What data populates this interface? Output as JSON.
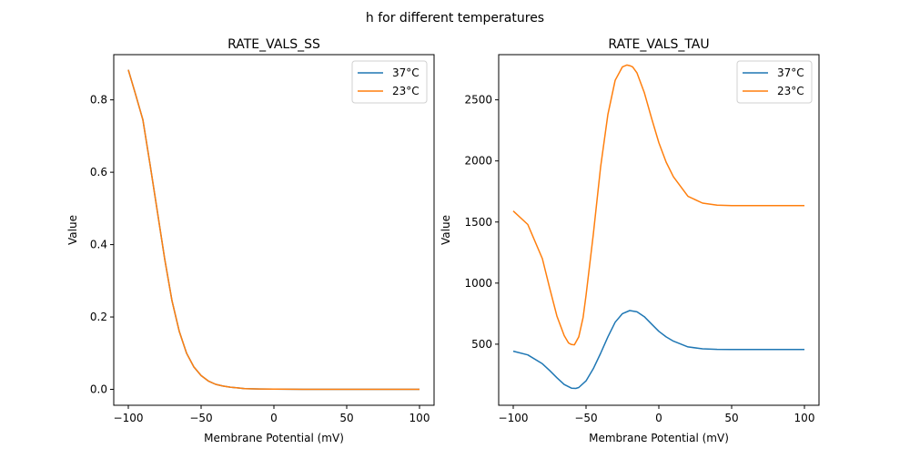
{
  "chart_data": {
    "suptitle": "h for different temperatures",
    "panels": [
      {
        "type": "line",
        "title": "RATE_VALS_SS",
        "xlabel": "Membrane Potential (mV)",
        "ylabel": "Value",
        "xlim": [
          -110,
          110
        ],
        "ylim": [
          -0.044,
          0.925
        ],
        "xticks": [
          -100,
          -50,
          0,
          50,
          100
        ],
        "xtick_labels": [
          "−100",
          "−50",
          "0",
          "50",
          "100"
        ],
        "yticks": [
          0.0,
          0.2,
          0.4,
          0.6,
          0.8
        ],
        "ytick_labels": [
          "0.0",
          "0.2",
          "0.4",
          "0.6",
          "0.8"
        ],
        "legend": "top-right",
        "grid": false,
        "series": [
          {
            "name": "37°C",
            "color": "#1f77b4",
            "x": [
              -100,
              -95,
              -90,
              -85,
              -80,
              -75,
              -70,
              -65,
              -60,
              -55,
              -50,
              -45,
              -40,
              -35,
              -30,
              -25,
              -20,
              -10,
              0,
              10,
              20,
              30,
              40,
              50,
              60,
              70,
              80,
              90,
              100
            ],
            "y": [
              0.883,
              0.815,
              0.745,
              0.62,
              0.49,
              0.36,
              0.245,
              0.16,
              0.1,
              0.062,
              0.038,
              0.023,
              0.014,
              0.009,
              0.006,
              0.004,
              0.002,
              0.001,
              0.0005,
              0.0002,
              0.0001,
              0,
              0,
              0,
              0,
              0,
              0,
              0,
              0
            ]
          },
          {
            "name": "23°C",
            "color": "#ff7f0e",
            "x": [
              -100,
              -95,
              -90,
              -85,
              -80,
              -75,
              -70,
              -65,
              -60,
              -55,
              -50,
              -45,
              -40,
              -35,
              -30,
              -25,
              -20,
              -10,
              0,
              10,
              20,
              30,
              40,
              50,
              60,
              70,
              80,
              90,
              100
            ],
            "y": [
              0.883,
              0.815,
              0.745,
              0.62,
              0.49,
              0.36,
              0.245,
              0.16,
              0.1,
              0.062,
              0.038,
              0.023,
              0.014,
              0.009,
              0.006,
              0.004,
              0.002,
              0.001,
              0.0005,
              0.0002,
              0.0001,
              0,
              0,
              0,
              0,
              0,
              0,
              0,
              0
            ]
          }
        ]
      },
      {
        "type": "line",
        "title": "RATE_VALS_TAU",
        "xlabel": "Membrane Potential (mV)",
        "ylabel": "Value",
        "xlim": [
          -110,
          110
        ],
        "ylim": [
          0,
          2870
        ],
        "xticks": [
          -100,
          -50,
          0,
          50,
          100
        ],
        "xtick_labels": [
          "−100",
          "−50",
          "0",
          "50",
          "100"
        ],
        "yticks": [
          500,
          1000,
          1500,
          2000,
          2500
        ],
        "ytick_labels": [
          "500",
          "1000",
          "1500",
          "2000",
          "2500"
        ],
        "legend": "top-right",
        "grid": false,
        "series": [
          {
            "name": "37°C",
            "color": "#1f77b4",
            "x": [
              -100,
              -90,
              -80,
              -75,
              -70,
              -65,
              -60,
              -57,
              -55,
              -50,
              -45,
              -40,
              -35,
              -30,
              -25,
              -20,
              -15,
              -10,
              -5,
              0,
              5,
              10,
              20,
              30,
              40,
              50,
              60,
              70,
              80,
              90,
              100
            ],
            "y": [
              443,
              412,
              340,
              285,
              225,
              170,
              140,
              138,
              145,
              200,
              300,
              425,
              560,
              680,
              750,
              775,
              765,
              725,
              665,
              605,
              560,
              525,
              478,
              462,
              458,
              457,
              457,
              457,
              457,
              457,
              457
            ]
          },
          {
            "name": "23°C",
            "color": "#ff7f0e",
            "x": [
              -100,
              -90,
              -80,
              -75,
              -70,
              -65,
              -62,
              -60,
              -58,
              -55,
              -52,
              -50,
              -45,
              -40,
              -35,
              -30,
              -25,
              -22,
              -20,
              -18,
              -15,
              -10,
              -5,
              0,
              5,
              10,
              20,
              30,
              40,
              50,
              60,
              70,
              80,
              90,
              100
            ],
            "y": [
              1590,
              1480,
              1200,
              960,
              730,
              570,
              510,
              497,
              495,
              560,
              720,
              900,
              1400,
              1950,
              2380,
              2660,
              2770,
              2785,
              2780,
              2770,
              2720,
              2560,
              2350,
              2150,
              1990,
              1870,
              1710,
              1655,
              1638,
              1635,
              1635,
              1635,
              1635,
              1635,
              1635
            ]
          }
        ]
      }
    ]
  }
}
